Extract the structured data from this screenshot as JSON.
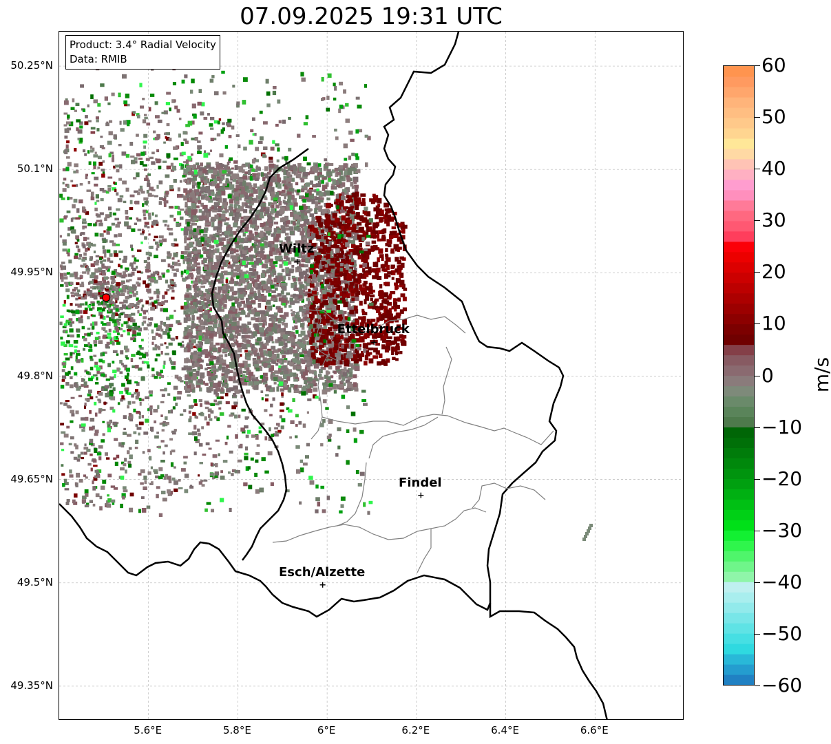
{
  "title": "07.09.2025 19:31 UTC",
  "info_box": {
    "product_line": "Product: 3.4° Radial Velocity",
    "data_line": "Data: RMIB"
  },
  "map": {
    "lon_range": [
      5.4,
      6.8
    ],
    "lat_range": [
      49.3,
      50.3
    ],
    "lat_ticks": [
      {
        "value": 50.25,
        "label": "50.25°N"
      },
      {
        "value": 50.1,
        "label": "50.1°N"
      },
      {
        "value": 49.95,
        "label": "49.95°N"
      },
      {
        "value": 49.8,
        "label": "49.8°N"
      },
      {
        "value": 49.65,
        "label": "49.65°N"
      },
      {
        "value": 49.5,
        "label": "49.5°N"
      },
      {
        "value": 49.35,
        "label": "49.35°N"
      }
    ],
    "lon_ticks": [
      {
        "value": 5.6,
        "label": "5.6°E"
      },
      {
        "value": 5.8,
        "label": "5.8°E"
      },
      {
        "value": 6.0,
        "label": "6°E"
      },
      {
        "value": 6.2,
        "label": "6.2°E"
      },
      {
        "value": 6.4,
        "label": "6.4°E"
      },
      {
        "value": 6.6,
        "label": "6.6°E"
      }
    ],
    "radar_site": {
      "lon": 5.505,
      "lat": 49.914,
      "color": "#ff0000"
    },
    "cities": [
      {
        "name": "Wiltz",
        "lon": 5.933,
        "lat": 49.966
      },
      {
        "name": "Ettelbruck",
        "lon": 6.105,
        "lat": 49.849
      },
      {
        "name": "Findel",
        "lon": 6.21,
        "lat": 49.627
      },
      {
        "name": "Esch/Alzette",
        "lon": 5.99,
        "lat": 49.497
      }
    ]
  },
  "colorbar": {
    "unit": "m/s",
    "min": -60,
    "max": 60,
    "ticks": [
      {
        "value": 60,
        "label": "60"
      },
      {
        "value": 50,
        "label": "50"
      },
      {
        "value": 40,
        "label": "40"
      },
      {
        "value": 30,
        "label": "30"
      },
      {
        "value": 20,
        "label": "20"
      },
      {
        "value": 10,
        "label": "10"
      },
      {
        "value": 0,
        "label": "0"
      },
      {
        "value": -10,
        "label": "−10"
      },
      {
        "value": -20,
        "label": "−20"
      },
      {
        "value": -30,
        "label": "−30"
      },
      {
        "value": -40,
        "label": "−40"
      },
      {
        "value": -50,
        "label": "−50"
      },
      {
        "value": -60,
        "label": "−60"
      }
    ],
    "colors": [
      "#2081c3",
      "#249dcf",
      "#29b8d8",
      "#2fd9e0",
      "#46dfe3",
      "#5fe3e5",
      "#78e6e8",
      "#92eaeb",
      "#a9eeee",
      "#bff0f0",
      "#8ff5a9",
      "#6ff58a",
      "#4ff56b",
      "#2ff54c",
      "#12f032",
      "#00e018",
      "#00d016",
      "#00c014",
      "#00b012",
      "#00a010",
      "#00940e",
      "#00880c",
      "#007c0a",
      "#007008",
      "#006606",
      "#4e7a4c",
      "#5a845a",
      "#6a8a6a",
      "#7e8a7a",
      "#8a7b7b",
      "#8a6a70",
      "#875a62",
      "#843f48",
      "#700000",
      "#7c0000",
      "#8c0000",
      "#9c0000",
      "#ac0000",
      "#bc0000",
      "#cc0000",
      "#dc0000",
      "#ec0000",
      "#fb0008",
      "#ff3e5c",
      "#ff5872",
      "#ff6880",
      "#ff7a98",
      "#ff8fbd",
      "#ff9dcf",
      "#ffb0c2",
      "#ffc3b5",
      "#ffd9a4",
      "#ffe798",
      "#ffd590",
      "#ffc98a",
      "#ffbe82",
      "#ffb47a",
      "#ffa66c",
      "#ff9a60",
      "#ff944f"
    ]
  },
  "legend_colors": {
    "outbound_dark": "#700000",
    "neutral": "#8a7b7b",
    "inbound": "#008800"
  }
}
